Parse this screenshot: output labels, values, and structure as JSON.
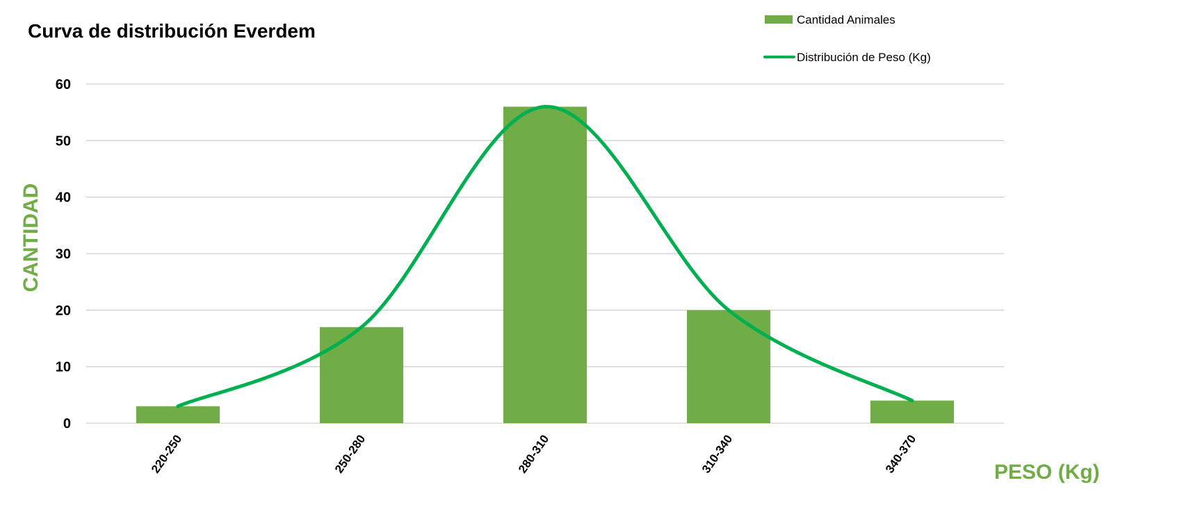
{
  "chart_data": {
    "type": "bar",
    "title": "Curva de distribución Everdem",
    "xlabel": "PESO (Kg)",
    "ylabel": "CANTIDAD",
    "categories": [
      "220-250",
      "250-280",
      "280-310",
      "310-340",
      "340-370"
    ],
    "series": [
      {
        "name": "Cantidad Animales",
        "type": "bar",
        "values": [
          3,
          17,
          56,
          20,
          4
        ],
        "color": "#70ad47"
      },
      {
        "name": "Distribución de Peso (Kg)",
        "type": "line",
        "smooth": true,
        "values": [
          3,
          17,
          56,
          20,
          4
        ],
        "color": "#00b050"
      }
    ],
    "ylim": [
      0,
      60
    ],
    "yticks": [
      0,
      10,
      20,
      30,
      40,
      50,
      60
    ],
    "grid": true,
    "legend_position": "top-right",
    "axis_label_color": "#70ad47"
  }
}
